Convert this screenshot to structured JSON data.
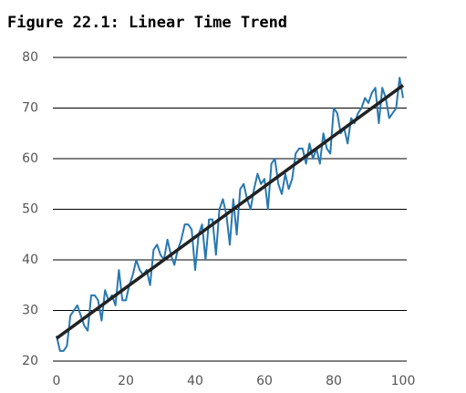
{
  "chart_data": {
    "type": "line",
    "title": "Figure 22.1: Linear Time Trend",
    "xlim": [
      0,
      100
    ],
    "ylim": [
      20,
      80
    ],
    "xticks": [
      0,
      20,
      40,
      60,
      80,
      100
    ],
    "yticks": [
      20,
      30,
      40,
      50,
      60,
      70,
      80
    ],
    "grid": true,
    "series": [
      {
        "color": "#2878b0",
        "width": 2,
        "x": [
          0,
          1,
          2,
          3,
          4,
          5,
          6,
          7,
          8,
          9,
          10,
          11,
          12,
          13,
          14,
          15,
          16,
          17,
          18,
          19,
          20,
          21,
          22,
          23,
          24,
          25,
          26,
          27,
          28,
          29,
          30,
          31,
          32,
          33,
          34,
          35,
          36,
          37,
          38,
          39,
          40,
          41,
          42,
          43,
          44,
          45,
          46,
          47,
          48,
          49,
          50,
          51,
          52,
          53,
          54,
          55,
          56,
          57,
          58,
          59,
          60,
          61,
          62,
          63,
          64,
          65,
          66,
          67,
          68,
          69,
          70,
          71,
          72,
          73,
          74,
          75,
          76,
          77,
          78,
          79,
          80,
          81,
          82,
          83,
          84,
          85,
          86,
          87,
          88,
          89,
          90,
          91,
          92,
          93,
          94,
          95,
          96,
          97,
          98,
          99,
          100
        ],
        "values": [
          25,
          22,
          22,
          23,
          29,
          30,
          31,
          29,
          27,
          26,
          33,
          33,
          32,
          28,
          34,
          32,
          33,
          31,
          38,
          32,
          32,
          35,
          37,
          40,
          38,
          37,
          38,
          35,
          42,
          43,
          41,
          40,
          44,
          41,
          39,
          42,
          44,
          47,
          47,
          46,
          38,
          45,
          47,
          40,
          48,
          48,
          41,
          50,
          52,
          49,
          43,
          52,
          45,
          54,
          55,
          52,
          50,
          54,
          57,
          55,
          56,
          50,
          59,
          60,
          55,
          53,
          57,
          54,
          56,
          61,
          62,
          62,
          59,
          63,
          60,
          62,
          59,
          65,
          62,
          61,
          70,
          69,
          65,
          66,
          63,
          68,
          67,
          69,
          70,
          72,
          71,
          73,
          74,
          67,
          74,
          72,
          68,
          69,
          70,
          76,
          72
        ]
      },
      {
        "color": "#222222",
        "width": 3.5,
        "x": [
          0,
          100
        ],
        "values": [
          24.5,
          74.5
        ]
      }
    ]
  }
}
